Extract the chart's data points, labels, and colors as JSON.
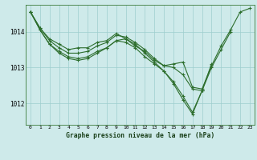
{
  "title": "Graphe pression niveau de la mer (hPa)",
  "background_color": "#ceeaea",
  "grid_color": "#9ecece",
  "line_color": "#2d6e2d",
  "xlim": [
    -0.5,
    23.5
  ],
  "ylim": [
    1011.4,
    1014.75
  ],
  "yticks": [
    1012,
    1013,
    1014
  ],
  "xticks": [
    0,
    1,
    2,
    3,
    4,
    5,
    6,
    7,
    8,
    9,
    10,
    11,
    12,
    13,
    14,
    15,
    16,
    17,
    18,
    19,
    20,
    21,
    22,
    23
  ],
  "series": [
    {
      "x": [
        0,
        1,
        2,
        3,
        4,
        5,
        6,
        7,
        8,
        9,
        10,
        11,
        12,
        13,
        14,
        15,
        16,
        17,
        18,
        19,
        20,
        21,
        22,
        23
      ],
      "y": [
        1014.55,
        1014.1,
        1013.8,
        1013.65,
        1013.5,
        1013.55,
        1013.55,
        1013.7,
        1013.75,
        1013.95,
        1013.8,
        1013.6,
        1013.45,
        1013.2,
        1013.05,
        1013.1,
        1013.15,
        1012.45,
        1012.4,
        1013.05,
        1013.6,
        1014.05,
        1014.55,
        1014.65
      ]
    },
    {
      "x": [
        0,
        1,
        2,
        3,
        4,
        5,
        6,
        7,
        8,
        9,
        10,
        11,
        12,
        13,
        14,
        15,
        16,
        17,
        18,
        19,
        20,
        21
      ],
      "y": [
        1014.55,
        1014.1,
        1013.75,
        1013.55,
        1013.4,
        1013.4,
        1013.45,
        1013.6,
        1013.7,
        1013.9,
        1013.85,
        1013.7,
        1013.5,
        1013.25,
        1013.05,
        1013.0,
        1012.8,
        1012.4,
        1012.35,
        1013.0,
        1013.5,
        1014.0
      ]
    },
    {
      "x": [
        0,
        1,
        2,
        3,
        4,
        5,
        6,
        7,
        8,
        9,
        10,
        11,
        12,
        13,
        14,
        15,
        16,
        17,
        18,
        19
      ],
      "y": [
        1014.55,
        1014.05,
        1013.65,
        1013.45,
        1013.3,
        1013.25,
        1013.3,
        1013.45,
        1013.55,
        1013.75,
        1013.7,
        1013.55,
        1013.3,
        1013.1,
        1012.9,
        1012.6,
        1012.2,
        1011.75,
        1012.35,
        1013.1
      ]
    },
    {
      "x": [
        0,
        1,
        2,
        3,
        4,
        5,
        6,
        7,
        8,
        9,
        10,
        11,
        12,
        13,
        14,
        15,
        16,
        17,
        18
      ],
      "y": [
        1014.55,
        1014.05,
        1013.65,
        1013.4,
        1013.25,
        1013.2,
        1013.25,
        1013.4,
        1013.55,
        1013.75,
        1013.8,
        1013.65,
        1013.4,
        1013.15,
        1012.9,
        1012.55,
        1012.1,
        1011.7,
        1012.35
      ]
    }
  ]
}
